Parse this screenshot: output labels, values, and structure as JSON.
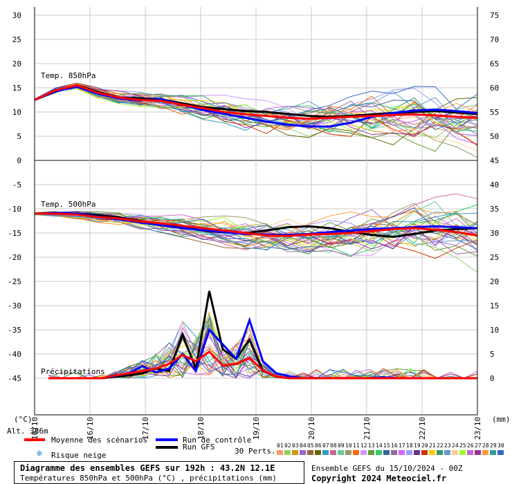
{
  "chart_data": {
    "type": "line",
    "title": "Diagramme des ensembles GEFS sur 192h : 43.2N 12.1E",
    "subtitle": "Températures 850hPa et 500hPa (°C) , précipitations (mm)",
    "left_axis_ticks": [
      "30",
      "25",
      "20",
      "15",
      "10",
      "5",
      "0",
      "-5",
      "-10",
      "-15",
      "-20",
      "-25",
      "-30",
      "-35",
      "-40",
      "-45"
    ],
    "right_axis_ticks": [
      "75",
      "70",
      "65",
      "60",
      "55",
      "50",
      "45",
      "40",
      "35",
      "30",
      "25",
      "20",
      "15",
      "10",
      "5",
      "0"
    ],
    "left_unit": "(°C)",
    "right_unit": "(mm)",
    "altitude": "Alt. 386m",
    "x_ticks": [
      "16/10",
      "16/10",
      "17/10",
      "18/10",
      "19/10",
      "20/10",
      "21/10",
      "22/10",
      "23/10"
    ],
    "panel_labels": {
      "t850": "Temp. 850hPa",
      "t500": "Temp. 500hPa",
      "precip": "Précipitations"
    },
    "series": [
      {
        "name": "Moyenne des scénarios",
        "color": "#ff0000",
        "t850": [
          12.5,
          14.5,
          15.5,
          14,
          13,
          12.5,
          12.3,
          11.5,
          10.8,
          10,
          9.5,
          9.2,
          8.8,
          8.6,
          8.8,
          9,
          9.2,
          9.4,
          9.5,
          9.3,
          9.0,
          8.8
        ],
        "t500": [
          -11,
          -11,
          -11.2,
          -11.7,
          -12,
          -12.6,
          -13,
          -13.5,
          -14,
          -14.5,
          -15,
          -15.5,
          -15.6,
          -15.3,
          -15.2,
          -15,
          -14.6,
          -14.2,
          -14,
          -14.3,
          -14.8,
          -15.5
        ],
        "precip": [
          0,
          0,
          0,
          0,
          0,
          0.6,
          1,
          1.5,
          2,
          3,
          4.8,
          3.5,
          5.5,
          2.6,
          3,
          4.2,
          1.6,
          0.3,
          0,
          0,
          0,
          0,
          0,
          0,
          0,
          0,
          0,
          0,
          0,
          0,
          0,
          0,
          0
        ]
      },
      {
        "name": "Run de contrôle",
        "color": "#0000ff",
        "t850": [
          12.5,
          14.3,
          15.2,
          13.8,
          12.8,
          12.4,
          12.6,
          11.5,
          10.4,
          9.6,
          8.8,
          8,
          7.4,
          7,
          7,
          7.8,
          9,
          9.8,
          10.3,
          10.5,
          10.2,
          9.8
        ],
        "t500": [
          -11,
          -10.8,
          -11,
          -11.6,
          -12.2,
          -12.8,
          -13.4,
          -14,
          -14.4,
          -14.8,
          -15.2,
          -15.3,
          -15.4,
          -15.2,
          -14.8,
          -14.5,
          -14.2,
          -14,
          -13.8,
          -13.6,
          -13.8,
          -14
        ],
        "precip": [
          0,
          0,
          0,
          0,
          0,
          0.5,
          1,
          2.5,
          1.2,
          2,
          5,
          1.5,
          10,
          7,
          4,
          12,
          3.5,
          1,
          0.4,
          0,
          0,
          0,
          0,
          0,
          0,
          0.2,
          0,
          0,
          0,
          0,
          0,
          0,
          0
        ]
      },
      {
        "name": "Run GFS",
        "color": "#000000",
        "t850": [
          12.5,
          14.2,
          15.5,
          14.2,
          13,
          12.8,
          12.6,
          11.8,
          11,
          10.6,
          10.2,
          10,
          9.6,
          9.2,
          9,
          9.2,
          9.5,
          9.8,
          10,
          10.2,
          9.9,
          9.6
        ],
        "t500": [
          -11,
          -11,
          -11,
          -11.3,
          -11.8,
          -12.5,
          -13.2,
          -13.8,
          -14.5,
          -14.9,
          -15,
          -14.5,
          -13.8,
          -13.6,
          -14,
          -14.8,
          -15.4,
          -15.8,
          -15.2,
          -14.5,
          -14.2,
          -14
        ],
        "precip": [
          0,
          0,
          0,
          0,
          0,
          0.3,
          0.6,
          1,
          2,
          1.5,
          9,
          2,
          18,
          6,
          4,
          8,
          1.5,
          0.3,
          0,
          0,
          0,
          0,
          0,
          0,
          0,
          0,
          0,
          0,
          0,
          0,
          0,
          0,
          0
        ]
      }
    ],
    "legend": {
      "mean": "Moyenne des scénarios",
      "control": "Run de contrôle",
      "gfs": "Run GFS",
      "snow": "Risque neige",
      "perts": "30 Perts."
    },
    "pert_numbers": [
      "01",
      "02",
      "03",
      "04",
      "05",
      "06",
      "07",
      "08",
      "09",
      "10",
      "11",
      "12",
      "13",
      "14",
      "15",
      "16",
      "17",
      "18",
      "19",
      "20",
      "21",
      "22",
      "23",
      "24",
      "25",
      "26",
      "27",
      "28",
      "29",
      "30"
    ],
    "pert_colors": [
      "#ff9966",
      "#99cc66",
      "#cc9900",
      "#9966cc",
      "#996633",
      "#666600",
      "#3399cc",
      "#cc6699",
      "#66cc99",
      "#999966",
      "#ff6600",
      "#cc99ff",
      "#669933",
      "#33cc66",
      "#336699",
      "#996699",
      "#cc66ff",
      "#9999ff",
      "#663399",
      "#cc3300",
      "#ffcc00",
      "#339966",
      "#6699cc",
      "#ffcc99",
      "#99ff33",
      "#cc66cc",
      "#993399",
      "#ff9933",
      "#339999",
      "#3366cc"
    ]
  },
  "footer": {
    "title": "Diagramme des ensembles GEFS sur 192h : 43.2N 12.1E",
    "subtitle": "Températures 850hPa et 500hPa (°C) , précipitations (mm)",
    "run": "Ensemble GEFS du 15/10/2024 - 00Z",
    "copyright": "Copyright 2024 Meteociel.fr"
  }
}
